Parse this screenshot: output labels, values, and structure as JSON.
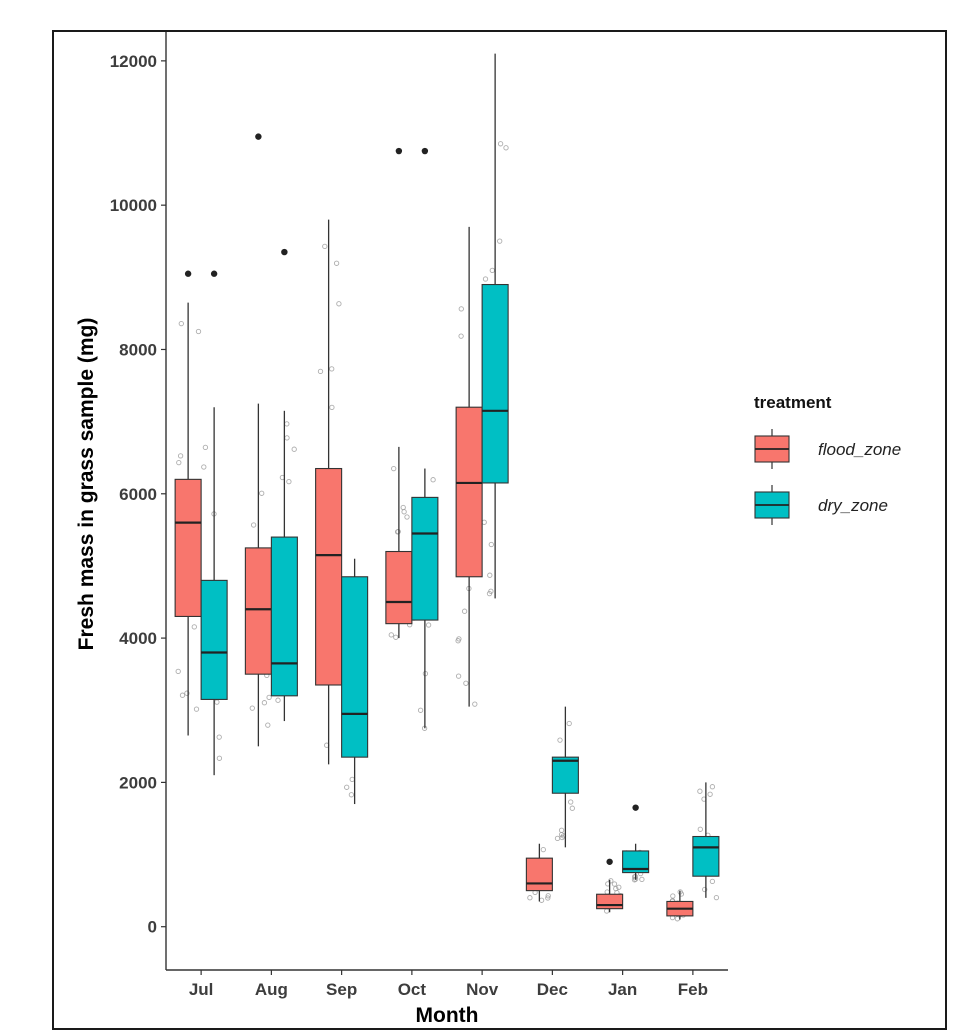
{
  "chart_data": {
    "type": "box",
    "title": "",
    "xlabel": "Month",
    "ylabel": "Fresh mass in grass sample (mg)",
    "ylim": [
      -600,
      12400
    ],
    "yticks": [
      0,
      2000,
      4000,
      6000,
      8000,
      10000,
      12000
    ],
    "grid": false,
    "legend_position": "right",
    "legend_title": "treatment",
    "categories": [
      "Jul",
      "Aug",
      "Sep",
      "Oct",
      "Nov",
      "Dec",
      "Jan",
      "Feb"
    ],
    "series": [
      {
        "name": "flood_zone",
        "color": "#F8766D",
        "boxes": [
          {
            "whisker_low": 2650,
            "q1": 4300,
            "median": 5600,
            "q3": 6200,
            "whisker_high": 8650,
            "outliers": [
              9050
            ]
          },
          {
            "whisker_low": 2500,
            "q1": 3500,
            "median": 4400,
            "q3": 5250,
            "whisker_high": 7250,
            "outliers": [
              10950
            ]
          },
          {
            "whisker_low": 2250,
            "q1": 3350,
            "median": 5150,
            "q3": 6350,
            "whisker_high": 9800,
            "outliers": []
          },
          {
            "whisker_low": 4000,
            "q1": 4200,
            "median": 4500,
            "q3": 5200,
            "whisker_high": 6650,
            "outliers": [
              10750
            ]
          },
          {
            "whisker_low": 3050,
            "q1": 4850,
            "median": 6150,
            "q3": 7200,
            "whisker_high": 9700,
            "outliers": []
          },
          {
            "whisker_low": 350,
            "q1": 500,
            "median": 600,
            "q3": 950,
            "whisker_high": 1150,
            "outliers": []
          },
          {
            "whisker_low": 200,
            "q1": 250,
            "median": 300,
            "q3": 450,
            "whisker_high": 650,
            "outliers": [
              900
            ]
          },
          {
            "whisker_low": 100,
            "q1": 150,
            "median": 250,
            "q3": 350,
            "whisker_high": 500,
            "outliers": []
          }
        ]
      },
      {
        "name": "dry_zone",
        "color": "#00BFC4",
        "boxes": [
          {
            "whisker_low": 2100,
            "q1": 3150,
            "median": 3800,
            "q3": 4800,
            "whisker_high": 7200,
            "outliers": [
              9050
            ]
          },
          {
            "whisker_low": 2850,
            "q1": 3200,
            "median": 3650,
            "q3": 5400,
            "whisker_high": 7150,
            "outliers": [
              9350
            ]
          },
          {
            "whisker_low": 1700,
            "q1": 2350,
            "median": 2950,
            "q3": 4850,
            "whisker_high": 5100,
            "outliers": []
          },
          {
            "whisker_low": 2750,
            "q1": 4250,
            "median": 5450,
            "q3": 5950,
            "whisker_high": 6350,
            "outliers": [
              10750
            ]
          },
          {
            "whisker_low": 4550,
            "q1": 6150,
            "median": 7150,
            "q3": 8900,
            "whisker_high": 12100,
            "outliers": []
          },
          {
            "whisker_low": 1100,
            "q1": 1850,
            "median": 2300,
            "q3": 2350,
            "whisker_high": 3050,
            "outliers": []
          },
          {
            "whisker_low": 650,
            "q1": 750,
            "median": 800,
            "q3": 1050,
            "whisker_high": 1150,
            "outliers": [
              1650
            ]
          },
          {
            "whisker_low": 400,
            "q1": 700,
            "median": 1100,
            "q3": 1250,
            "whisker_high": 2000,
            "outliers": []
          }
        ]
      }
    ]
  }
}
